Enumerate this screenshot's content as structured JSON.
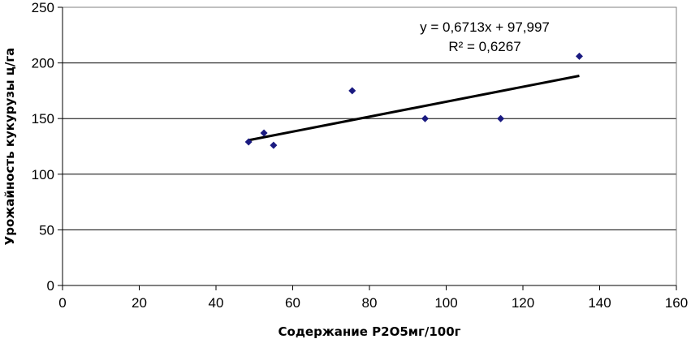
{
  "chart_data": {
    "type": "scatter",
    "title": "",
    "xlabel": "Содержание Р2О5мг/100г",
    "ylabel": "Урожайность кукурузы ц/га",
    "xlim": [
      0,
      160
    ],
    "ylim": [
      0,
      250
    ],
    "x_ticks": [
      "0",
      "20",
      "40",
      "60",
      "80",
      "100",
      "120",
      "140",
      "160"
    ],
    "y_ticks": [
      "0",
      "50",
      "100",
      "150",
      "200",
      "250"
    ],
    "grid": "horizontal",
    "legend": "none",
    "series": [
      {
        "points": [
          {
            "x": 48.5,
            "y": 129
          },
          {
            "x": 52.5,
            "y": 137
          },
          {
            "x": 55,
            "y": 126
          },
          {
            "x": 75.5,
            "y": 175
          },
          {
            "x": 94.5,
            "y": 150
          },
          {
            "x": 114.2,
            "y": 150
          },
          {
            "x": 134.7,
            "y": 206
          }
        ],
        "marker_color": "#1a1a80"
      }
    ],
    "trendline": {
      "slope": 0.6713,
      "intercept": 97.997,
      "x_range": [
        48.5,
        134.7
      ],
      "equation_label": "y = 0,6713x + 97,997",
      "r2_label": "R² = 0,6267"
    }
  }
}
